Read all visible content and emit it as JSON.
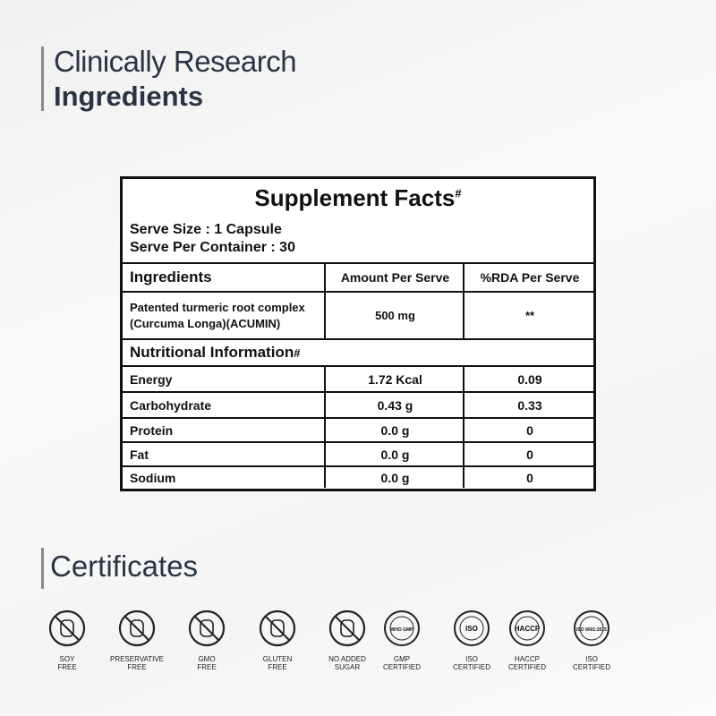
{
  "heading": {
    "line1": "Clinically Research",
    "line2": "Ingredients"
  },
  "facts": {
    "title": "Supplement Facts",
    "title_mark": "#",
    "serve_size": "Serve Size : 1 Capsule",
    "serve_per_container": "Serve Per Container : 30",
    "columns": [
      "Ingredients",
      "Amount Per Serve",
      "%RDA Per Serve"
    ],
    "ingredient": {
      "name_lines": [
        "Patented turmeric root complex",
        "(Curcuma Longa)(ACUMIN)"
      ],
      "amount": "500 mg",
      "rda": "**"
    },
    "nutrition_title": "Nutritional Information",
    "nutrition_mark": "#",
    "nutrition_rows": [
      [
        "Energy",
        "1.72 Kcal",
        "0.09"
      ],
      [
        "Carbohydrate",
        "0.43 g",
        "0.33"
      ],
      [
        "Protein",
        "0.0 g",
        "0"
      ],
      [
        "Fat",
        "0.0 g",
        "0"
      ],
      [
        "Sodium",
        "0.0 g",
        "0"
      ]
    ]
  },
  "certificates": {
    "title": "Certificates",
    "items": [
      {
        "lines": [
          "SOY",
          "FREE"
        ]
      },
      {
        "lines": [
          "PRESERVATIVE",
          "FREE"
        ]
      },
      {
        "lines": [
          "GMO",
          "FREE"
        ]
      },
      {
        "lines": [
          "GLUTEN",
          "FREE"
        ]
      },
      {
        "lines": [
          "NO ADDED",
          "SUGAR"
        ]
      },
      {
        "lines": [
          "GMP",
          "CERTIFIED"
        ],
        "badge": "WHO GMP"
      },
      {
        "lines": [
          "ISO",
          "CERTIFIED"
        ],
        "badge": "ISO"
      },
      {
        "lines": [
          "HACCP",
          "CERTIFIED"
        ],
        "badge": "HACCP"
      },
      {
        "lines": [
          "ISO",
          "CERTIFIED"
        ],
        "badge": "ISO 9001:2015"
      }
    ]
  }
}
